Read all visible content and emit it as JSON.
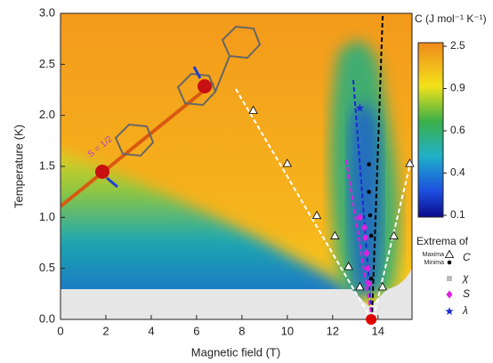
{
  "chart_data": {
    "type": "scatter",
    "x_label": "Magnetic field (T)",
    "y_label": "Temperature (K)",
    "xlim": [
      0,
      15.5
    ],
    "ylim": [
      0,
      3.0
    ],
    "xticks": [
      0,
      2,
      4,
      6,
      8,
      10,
      12,
      14
    ],
    "yticks": [
      {
        "value": 0,
        "label": "0.0"
      },
      {
        "value": 0.5,
        "label": "0.5"
      },
      {
        "value": 1,
        "label": "1.0"
      },
      {
        "value": 1.5,
        "label": "1.5"
      },
      {
        "value": 2,
        "label": "2.0"
      },
      {
        "value": 2.5,
        "label": "2.5"
      },
      {
        "value": 3,
        "label": "3.0"
      }
    ],
    "molecule_label": "S = 1/2",
    "colorbar": {
      "title": "C (J mol⁻¹ K⁻¹)",
      "ticks": [
        0.1,
        0.4,
        0.6,
        0.9,
        2.5
      ]
    },
    "legend_title": "Extrema of",
    "extrema_name": "C",
    "series": [
      {
        "label": "Maxima",
        "marker": "triangle",
        "color": "#ffffff",
        "x": [
          8.5,
          10.0,
          11.3,
          12.1,
          12.7,
          13.2,
          15.4,
          14.7,
          14.2
        ],
        "y": [
          2.05,
          1.53,
          1.02,
          0.82,
          0.52,
          0.32,
          1.53,
          0.82,
          0.32
        ]
      },
      {
        "label": "Minima",
        "marker": "dot",
        "color": "#000000",
        "x": [
          13.6,
          13.6,
          13.65,
          13.7,
          13.7
        ],
        "y": [
          1.52,
          1.25,
          1.02,
          0.82,
          0.4
        ]
      },
      {
        "name": "χ",
        "marker": "square",
        "color": "#bbbbbb",
        "x": [],
        "y": []
      },
      {
        "name": "S",
        "marker": "diamond",
        "color": "#e020e0",
        "x": [
          13.2,
          13.4,
          13.45,
          13.5,
          13.55,
          13.6
        ],
        "y": [
          1.0,
          0.9,
          0.8,
          0.65,
          0.5,
          0.35
        ]
      },
      {
        "name": "λ",
        "marker": "star",
        "color": "#1a2ad0",
        "x": [
          13.2
        ],
        "y": [
          2.07
        ]
      }
    ],
    "critical_point": {
      "x": 13.7,
      "y": 0,
      "color": "#e00000"
    }
  }
}
